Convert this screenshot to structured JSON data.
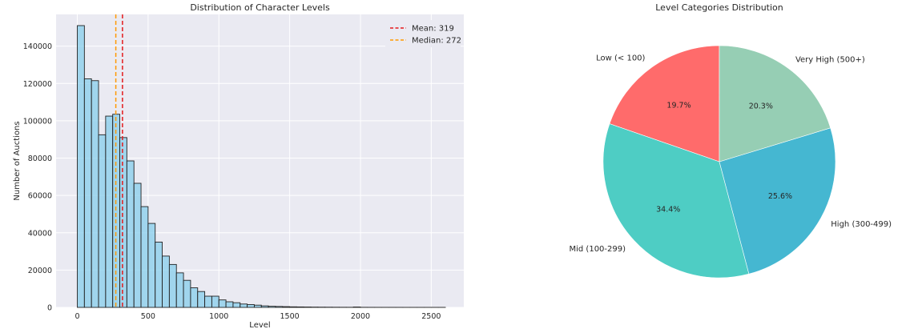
{
  "chart_data": [
    {
      "type": "bar",
      "subtype": "histogram",
      "title": "Distribution of Character Levels",
      "xlabel": "Level",
      "ylabel": "Number of Auctions",
      "xlim": [
        -150,
        2730
      ],
      "ylim": [
        0,
        157000
      ],
      "xticks": [
        0,
        500,
        1000,
        1500,
        2000,
        2500
      ],
      "yticks": [
        0,
        20000,
        40000,
        60000,
        80000,
        100000,
        120000,
        140000
      ],
      "grid": true,
      "bin_width": 50,
      "bins_start": 0,
      "bar_color": "#87ceeb",
      "values": [
        151000,
        122500,
        121500,
        92500,
        102500,
        103500,
        91000,
        78500,
        66500,
        54000,
        45000,
        35000,
        27500,
        23000,
        18500,
        14500,
        10500,
        8500,
        6000,
        6000,
        4000,
        3000,
        2500,
        1800,
        1500,
        1200,
        800,
        600,
        500,
        400,
        300,
        250,
        200,
        150,
        120,
        100,
        80,
        60,
        50,
        200,
        40,
        30,
        25,
        20,
        20,
        15,
        10,
        10,
        10,
        10,
        10,
        10
      ],
      "reference_lines": [
        {
          "label": "Mean: 319",
          "value": 319,
          "color": "#e41a1c"
        },
        {
          "label": "Median: 272",
          "value": 272,
          "color": "#ff9900"
        }
      ],
      "legend": "top-right"
    },
    {
      "type": "pie",
      "title": "Level Categories Distribution",
      "start_angle": 90,
      "direction": "counterclockwise",
      "slices": [
        {
          "label": "Low (< 100)",
          "value": 19.7,
          "pct_label": "19.7%",
          "color": "#ff6b6b"
        },
        {
          "label": "Mid (100-299)",
          "value": 34.4,
          "pct_label": "34.4%",
          "color": "#4ecdc4"
        },
        {
          "label": "High (300-499)",
          "value": 25.6,
          "pct_label": "25.6%",
          "color": "#45b7d1"
        },
        {
          "label": "Very High (500+)",
          "value": 20.3,
          "pct_label": "20.3%",
          "color": "#96ceb4"
        }
      ]
    }
  ]
}
